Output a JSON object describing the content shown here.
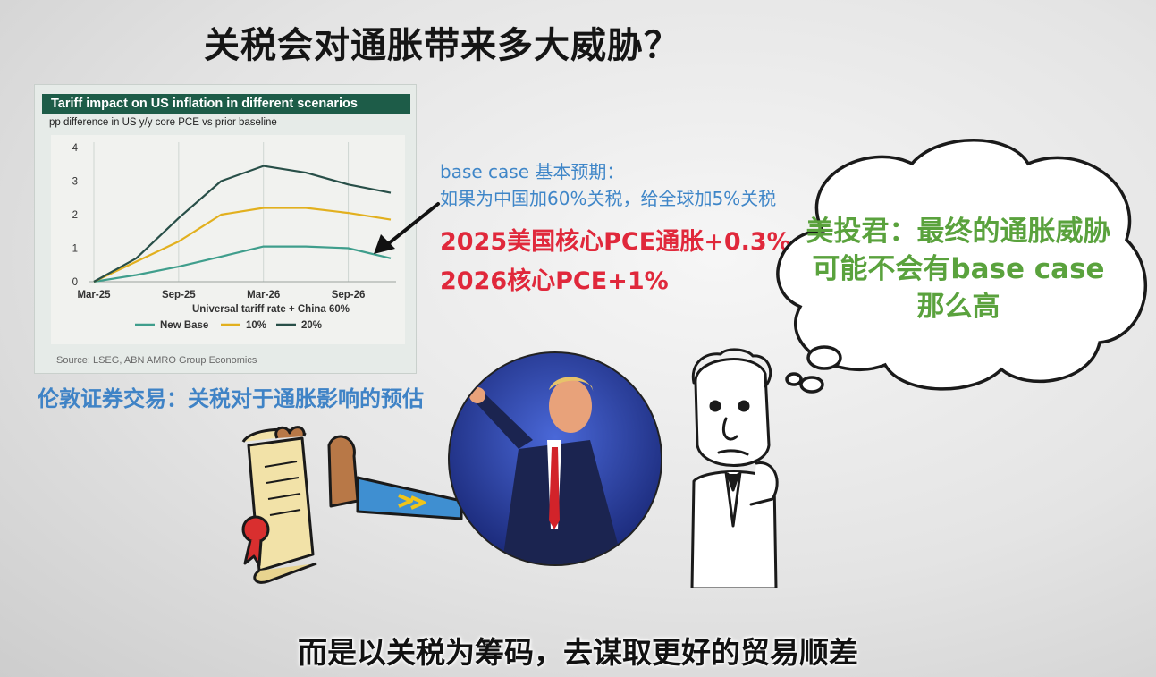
{
  "title": "关税会对通胀带来多大威胁？",
  "chart": {
    "title": "Tariff impact on US inflation in different scenarios",
    "subtitle": "pp difference in US y/y core PCE vs prior baseline",
    "xlabel": "Universal tariff rate + China 60%",
    "source": "Source: LSEG, ABN AMRO Group Economics",
    "colors": {
      "New Base": "#3f9e8c",
      "10%": "#e2b01e",
      "20%": "#284f48"
    }
  },
  "chart_data": {
    "type": "line",
    "title": "Tariff impact on US inflation in different scenarios",
    "subtitle": "pp difference in US y/y core PCE vs prior baseline",
    "xlabel": "Universal tariff rate + China 60%",
    "ylabel": "",
    "x_ticks": [
      "Mar-25",
      "Sep-25",
      "Mar-26",
      "Sep-26"
    ],
    "x": [
      "Mar-25",
      "Jun-25",
      "Sep-25",
      "Dec-25",
      "Mar-26",
      "Jun-26",
      "Sep-26",
      "Dec-26"
    ],
    "ylim": [
      0,
      4
    ],
    "y_ticks": [
      0,
      1,
      2,
      3,
      4
    ],
    "grid": "vertical",
    "legend": "bottom",
    "series": [
      {
        "name": "New Base",
        "values": [
          0,
          0.2,
          0.45,
          0.75,
          1.05,
          1.05,
          1.0,
          0.7
        ]
      },
      {
        "name": "10%",
        "values": [
          0,
          0.6,
          1.2,
          2.0,
          2.2,
          2.2,
          2.05,
          1.85
        ]
      },
      {
        "name": "20%",
        "values": [
          0,
          0.7,
          1.9,
          3.0,
          3.45,
          3.25,
          2.9,
          2.65
        ]
      }
    ]
  },
  "chart_caption": "伦敦证券交易：关税对于通胀影响的预估",
  "annotation": {
    "line1": "base case 基本预期：",
    "line2": "如果为中国加60%关税，给全球加5%关税",
    "line3": "2025美国核心PCE通胀+0.3%",
    "line4": "2026核心PCE+1%"
  },
  "thought": {
    "line1": "美投君：最终的通胀威胁",
    "line2": "可能不会有base case",
    "line3": "那么高",
    "color": "#5aa23d"
  },
  "subtitle": "而是以关税为筹码，去谋取更好的贸易顺差"
}
